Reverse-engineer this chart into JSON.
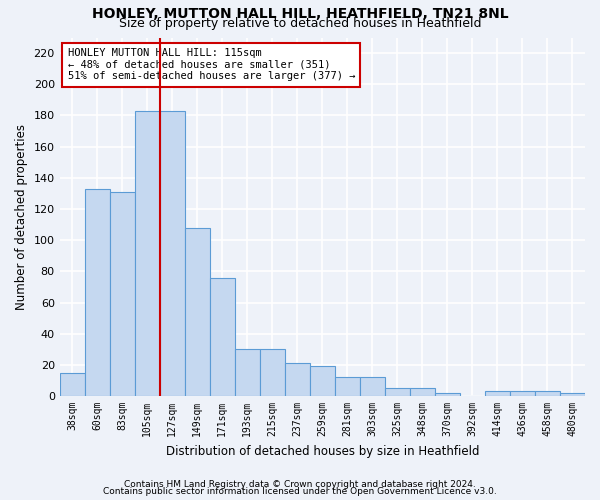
{
  "title": "HONLEY, MUTTON HALL HILL, HEATHFIELD, TN21 8NL",
  "subtitle": "Size of property relative to detached houses in Heathfield",
  "xlabel": "Distribution of detached houses by size in Heathfield",
  "ylabel": "Number of detached properties",
  "bar_color": "#c5d8f0",
  "bar_edge_color": "#5b9bd5",
  "categories": [
    "38sqm",
    "60sqm",
    "83sqm",
    "105sqm",
    "127sqm",
    "149sqm",
    "171sqm",
    "193sqm",
    "215sqm",
    "237sqm",
    "259sqm",
    "281sqm",
    "303sqm",
    "325sqm",
    "348sqm",
    "370sqm",
    "392sqm",
    "414sqm",
    "436sqm",
    "458sqm",
    "480sqm"
  ],
  "values": [
    15,
    133,
    131,
    183,
    183,
    108,
    76,
    30,
    30,
    21,
    19,
    12,
    12,
    5,
    5,
    2,
    0,
    3,
    3,
    3,
    2
  ],
  "ref_line_x": 3.5,
  "annotation_text": "HONLEY MUTTON HALL HILL: 115sqm\n← 48% of detached houses are smaller (351)\n51% of semi-detached houses are larger (377) →",
  "annotation_box_color": "#ffffff",
  "annotation_edge_color": "#cc0000",
  "ref_line_color": "#cc0000",
  "ylim": [
    0,
    230
  ],
  "yticks": [
    0,
    20,
    40,
    60,
    80,
    100,
    120,
    140,
    160,
    180,
    200,
    220
  ],
  "footer1": "Contains HM Land Registry data © Crown copyright and database right 2024.",
  "footer2": "Contains public sector information licensed under the Open Government Licence v3.0.",
  "bg_color": "#eef2f9",
  "grid_color": "#ffffff"
}
